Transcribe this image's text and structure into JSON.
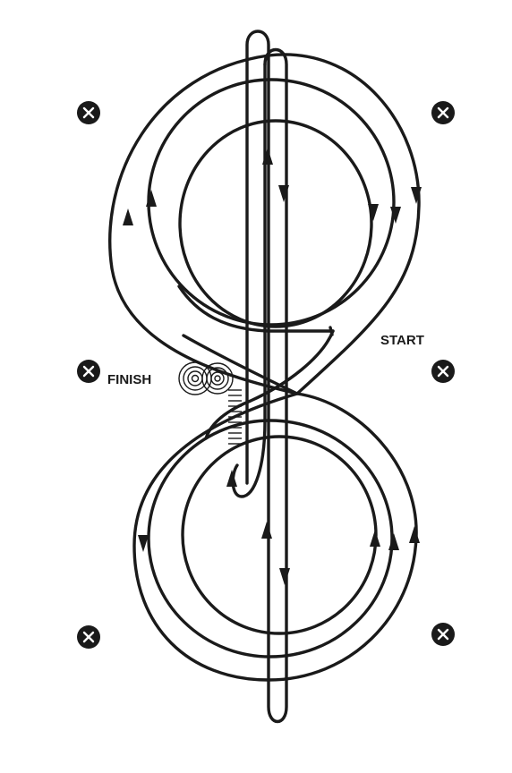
{
  "labels": {
    "start": "START",
    "finish": "FINISH"
  },
  "markers": {
    "cone_glyph": "X",
    "cone_icon": "x-circle-icon"
  },
  "colors": {
    "line": "#1a1a1a",
    "background": "#ffffff"
  }
}
